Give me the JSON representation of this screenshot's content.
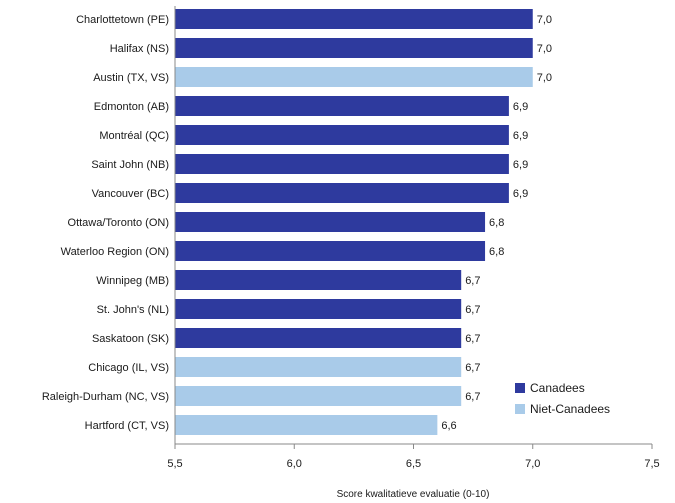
{
  "chart_data": {
    "type": "bar",
    "orientation": "horizontal",
    "xlabel": "Score kwalitatieve evaluatie (0-10)",
    "xlim": [
      5.5,
      7.5
    ],
    "x_ticks": [
      5.5,
      6.0,
      6.5,
      7.0,
      7.5
    ],
    "x_tick_labels": [
      "5,5",
      "6,0",
      "6,5",
      "7,0",
      "7,5"
    ],
    "grid": false,
    "legend_position": "bottom-right",
    "legend": [
      {
        "key": "canadian",
        "label": "Canadees",
        "color": "#2e3a9e"
      },
      {
        "key": "non_canadian",
        "label": "Niet-Canadees",
        "color": "#a9cbe9"
      }
    ],
    "bars": [
      {
        "category": "Charlottetown (PE)",
        "value": 7.0,
        "value_label": "7,0",
        "group": "canadian"
      },
      {
        "category": "Halifax (NS)",
        "value": 7.0,
        "value_label": "7,0",
        "group": "canadian"
      },
      {
        "category": "Austin (TX, VS)",
        "value": 7.0,
        "value_label": "7,0",
        "group": "non_canadian"
      },
      {
        "category": "Edmonton (AB)",
        "value": 6.9,
        "value_label": "6,9",
        "group": "canadian"
      },
      {
        "category": "Montréal (QC)",
        "value": 6.9,
        "value_label": "6,9",
        "group": "canadian"
      },
      {
        "category": "Saint John (NB)",
        "value": 6.9,
        "value_label": "6,9",
        "group": "canadian"
      },
      {
        "category": "Vancouver (BC)",
        "value": 6.9,
        "value_label": "6,9",
        "group": "canadian"
      },
      {
        "category": "Ottawa/Toronto (ON)",
        "value": 6.8,
        "value_label": "6,8",
        "group": "canadian"
      },
      {
        "category": "Waterloo Region (ON)",
        "value": 6.8,
        "value_label": "6,8",
        "group": "canadian"
      },
      {
        "category": "Winnipeg (MB)",
        "value": 6.7,
        "value_label": "6,7",
        "group": "canadian"
      },
      {
        "category": "St. John's (NL)",
        "value": 6.7,
        "value_label": "6,7",
        "group": "canadian"
      },
      {
        "category": "Saskatoon (SK)",
        "value": 6.7,
        "value_label": "6,7",
        "group": "canadian"
      },
      {
        "category": "Chicago (IL, VS)",
        "value": 6.7,
        "value_label": "6,7",
        "group": "non_canadian"
      },
      {
        "category": "Raleigh-Durham (NC, VS)",
        "value": 6.7,
        "value_label": "6,7",
        "group": "non_canadian"
      },
      {
        "category": "Hartford (CT, VS)",
        "value": 6.6,
        "value_label": "6,6",
        "group": "non_canadian"
      }
    ]
  }
}
